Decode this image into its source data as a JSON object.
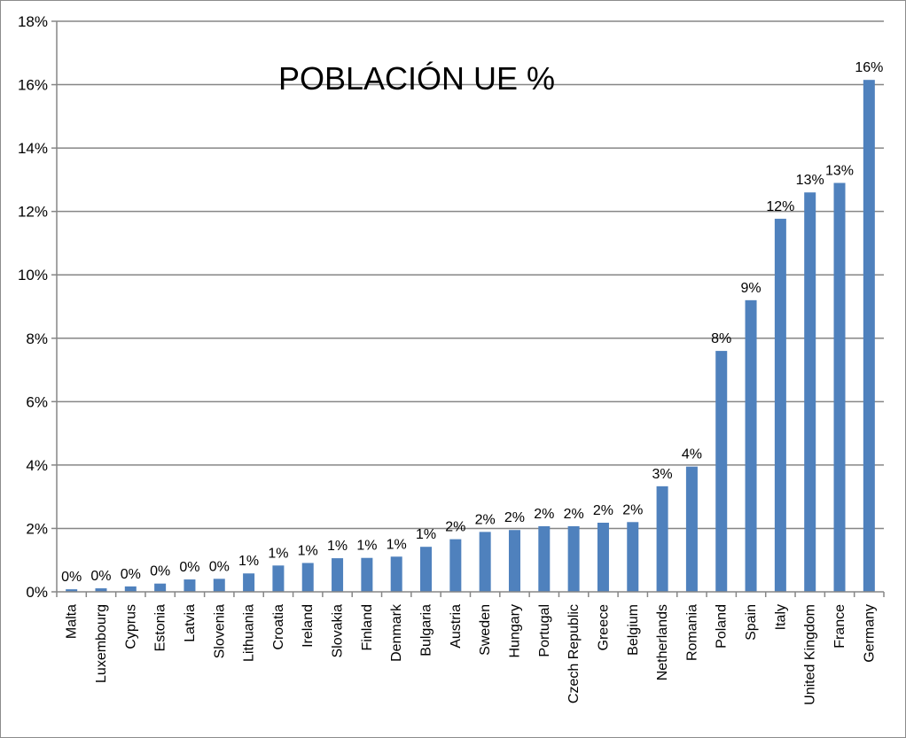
{
  "chart_data": {
    "type": "bar",
    "title": "POBLACIÓN  UE  %",
    "xlabel": "",
    "ylabel": "",
    "ylim": [
      0,
      18
    ],
    "y_ticks": [
      "0%",
      "2%",
      "4%",
      "6%",
      "8%",
      "10%",
      "12%",
      "14%",
      "16%",
      "18%"
    ],
    "grid": true,
    "legend": "none",
    "bar_color": "#4F81BD",
    "categories": [
      "Malta",
      "Luxembourg",
      "Cyprus",
      "Estonia",
      "Latvia",
      "Slovenia",
      "Lithuania",
      "Croatia",
      "Ireland",
      "Slovakia",
      "Finland",
      "Denmark",
      "Bulgaria",
      "Austria",
      "Sweden",
      "Hungary",
      "Portugal",
      "Czech Republic",
      "Greece",
      "Belgium",
      "Netherlands",
      "Romania",
      "Poland",
      "Spain",
      "Italy",
      "United Kingdom",
      "France",
      "Germany"
    ],
    "values": [
      0.08,
      0.11,
      0.17,
      0.26,
      0.39,
      0.41,
      0.58,
      0.83,
      0.91,
      1.06,
      1.07,
      1.11,
      1.42,
      1.66,
      1.89,
      1.95,
      2.07,
      2.07,
      2.18,
      2.2,
      3.33,
      3.95,
      7.6,
      9.2,
      11.77,
      12.6,
      12.9,
      16.15
    ],
    "data_labels": [
      "0%",
      "0%",
      "0%",
      "0%",
      "0%",
      "0%",
      "1%",
      "1%",
      "1%",
      "1%",
      "1%",
      "1%",
      "1%",
      "2%",
      "2%",
      "2%",
      "2%",
      "2%",
      "2%",
      "2%",
      "3%",
      "4%",
      "8%",
      "9%",
      "12%",
      "13%",
      "13%",
      "16%"
    ]
  }
}
